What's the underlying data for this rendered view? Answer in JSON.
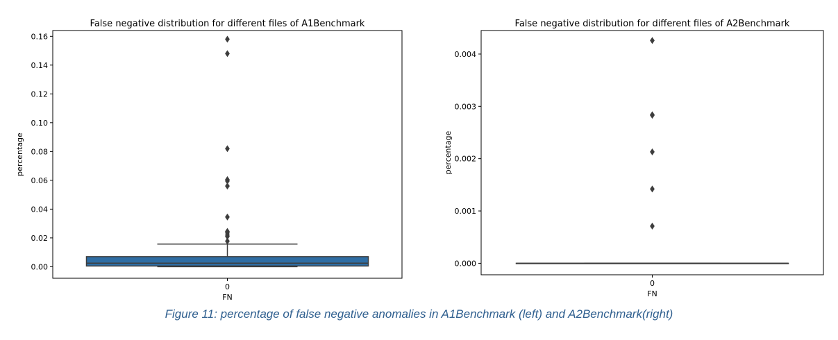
{
  "chart_data": [
    {
      "type": "box",
      "title": "False negative distribution for different files of A1Benchmark",
      "xlabel": "FN",
      "ylabel": "percentage",
      "categories": [
        "0"
      ],
      "ylim": [
        -0.008,
        0.164
      ],
      "yticks": [
        "0.00",
        "0.02",
        "0.04",
        "0.06",
        "0.08",
        "0.10",
        "0.12",
        "0.14",
        "0.16"
      ],
      "ytick_values": [
        0,
        0.02,
        0.04,
        0.06,
        0.08,
        0.1,
        0.12,
        0.14,
        0.16
      ],
      "box": {
        "whisker_low": 0.0,
        "q1": 0.0005,
        "median": 0.0025,
        "q3": 0.007,
        "whisker_high": 0.0157
      },
      "box_color": "#2e6da4",
      "outliers": [
        0.158,
        0.148,
        0.082,
        0.0605,
        0.0595,
        0.056,
        0.0345,
        0.0245,
        0.0235,
        0.022,
        0.021,
        0.0178
      ],
      "grid": false
    },
    {
      "type": "box",
      "title": "False negative distribution for different files of A2Benchmark",
      "xlabel": "FN",
      "ylabel": "percentage",
      "categories": [
        "0"
      ],
      "ylim": [
        -0.00022,
        0.00445
      ],
      "yticks": [
        "0.000",
        "0.001",
        "0.002",
        "0.003",
        "0.004"
      ],
      "ytick_values": [
        0,
        0.001,
        0.002,
        0.003,
        0.004
      ],
      "box": {
        "whisker_low": 0,
        "q1": 0,
        "median": 0,
        "q3": 0,
        "whisker_high": 0
      },
      "box_color": "#3d3d3d",
      "outliers": [
        0.00426,
        0.00284,
        0.00283,
        0.00213,
        0.00142,
        0.00071
      ],
      "grid": false
    }
  ],
  "caption": "Figure 11:  percentage of false negative anomalies in A1Benchmark (left) and A2Benchmark(right)",
  "colors": {
    "caption": "#2f5f8f",
    "axis": "#000000",
    "outlier": "#3d3d3d"
  }
}
